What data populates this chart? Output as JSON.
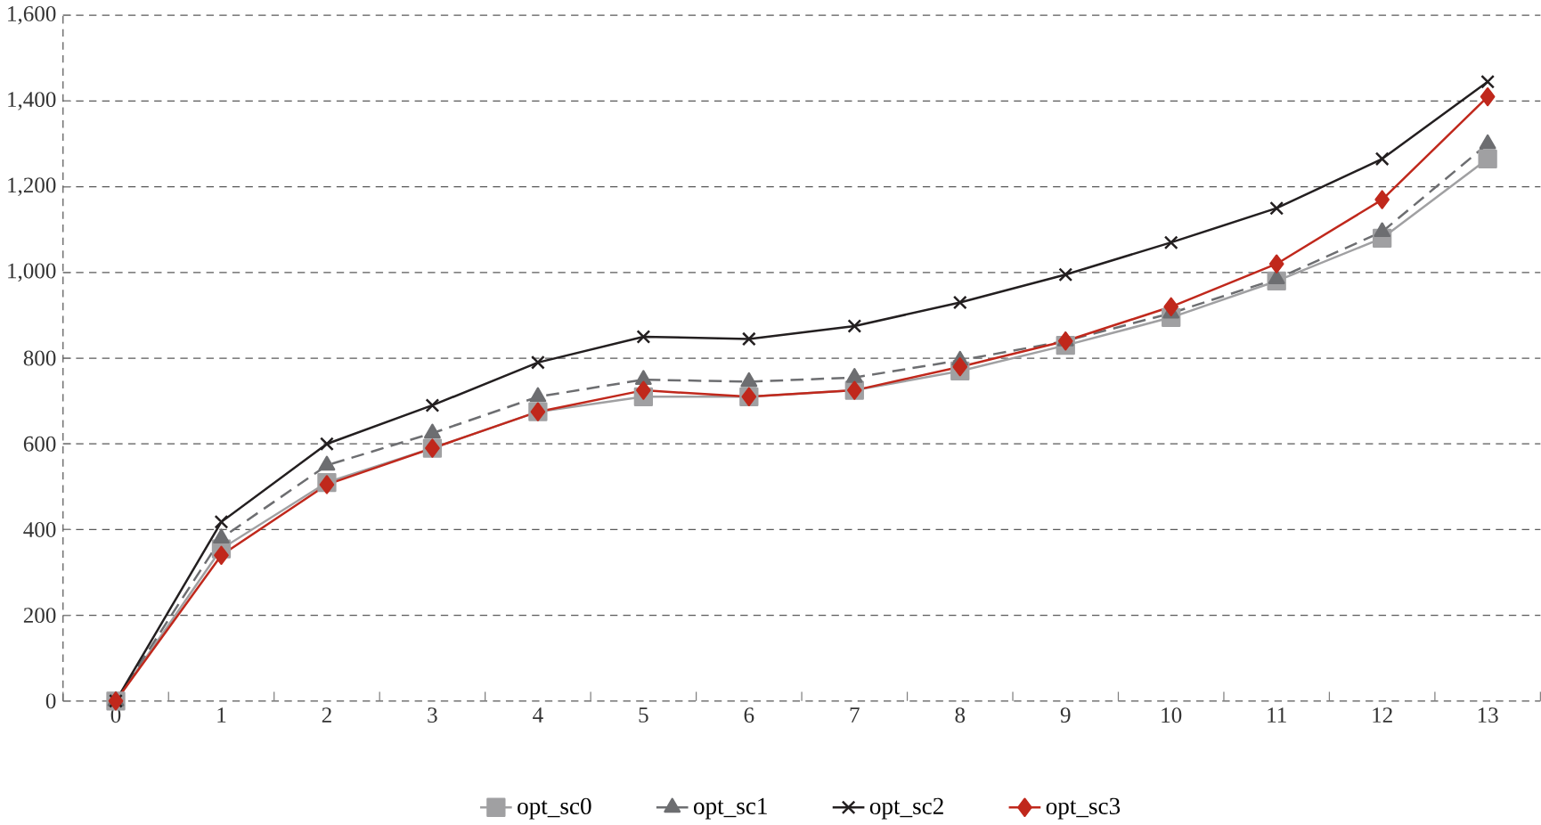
{
  "chart_data": {
    "type": "line",
    "categories": [
      "0",
      "1",
      "2",
      "3",
      "4",
      "5",
      "6",
      "7",
      "8",
      "9",
      "10",
      "11",
      "12",
      "13"
    ],
    "series": [
      {
        "name": "opt_sc0",
        "color": "#a0a0a2",
        "marker": "square",
        "line_style": "solid",
        "values": [
          0,
          355,
          510,
          590,
          675,
          710,
          710,
          725,
          770,
          830,
          895,
          980,
          1080,
          1265
        ]
      },
      {
        "name": "opt_sc1",
        "color": "#6d6e71",
        "marker": "triangle",
        "line_style": "dashed",
        "values": [
          0,
          380,
          550,
          625,
          710,
          750,
          745,
          755,
          795,
          840,
          905,
          985,
          1095,
          1300
        ]
      },
      {
        "name": "opt_sc2",
        "color": "#231f20",
        "marker": "cross",
        "line_style": "solid",
        "values": [
          0,
          418,
          600,
          690,
          790,
          850,
          845,
          875,
          930,
          995,
          1070,
          1150,
          1265,
          1445
        ]
      },
      {
        "name": "opt_sc3",
        "color": "#c0281c",
        "marker": "diamond",
        "line_style": "solid",
        "values": [
          0,
          340,
          505,
          590,
          675,
          725,
          710,
          725,
          780,
          840,
          920,
          1020,
          1170,
          1410
        ]
      }
    ],
    "ylim": [
      0,
      1600
    ],
    "yticks": [
      {
        "value": 0,
        "label": "0"
      },
      {
        "value": 200,
        "label": "200"
      },
      {
        "value": 400,
        "label": "400"
      },
      {
        "value": 600,
        "label": "600"
      },
      {
        "value": 800,
        "label": "800"
      },
      {
        "value": 1000,
        "label": "1,000"
      },
      {
        "value": 1200,
        "label": "1,200"
      },
      {
        "value": 1400,
        "label": "1,400"
      },
      {
        "value": 1600,
        "label": "1,600"
      }
    ],
    "grid": "y",
    "legend": "bottom"
  }
}
